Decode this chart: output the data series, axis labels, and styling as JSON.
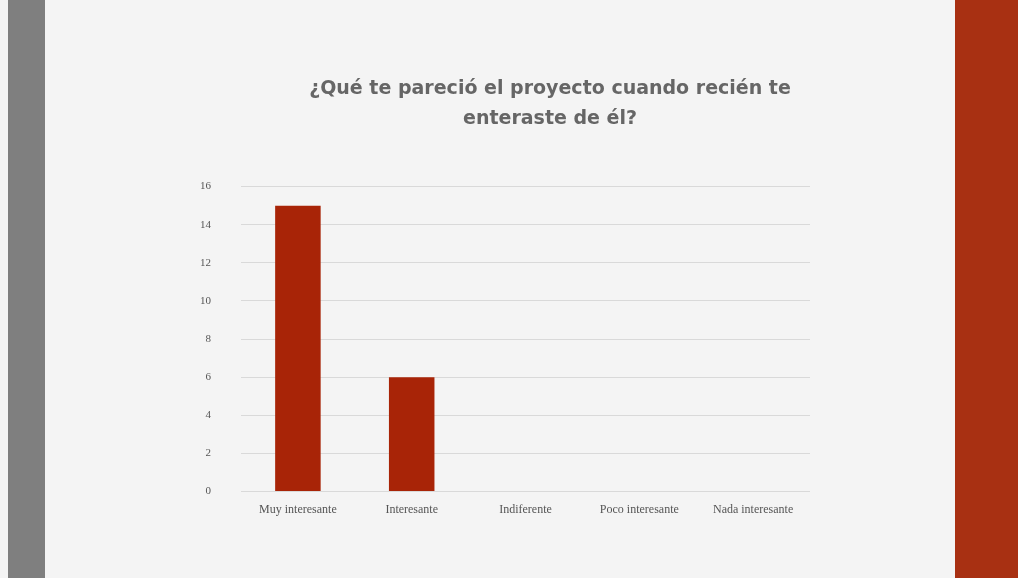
{
  "chart_data": {
    "type": "bar",
    "title": "¿Qué te pareció el proyecto cuando recién te enteraste de él?",
    "categories": [
      "Muy interesante",
      "Interesante",
      "Indiferente",
      "Poco interesante",
      "Nada interesante"
    ],
    "values": [
      15,
      6,
      0,
      0,
      0
    ],
    "color": "#a82407",
    "ylim": [
      0,
      16
    ],
    "yticks": [
      0,
      2,
      4,
      6,
      8,
      10,
      12,
      14,
      16
    ],
    "grid": "y"
  }
}
